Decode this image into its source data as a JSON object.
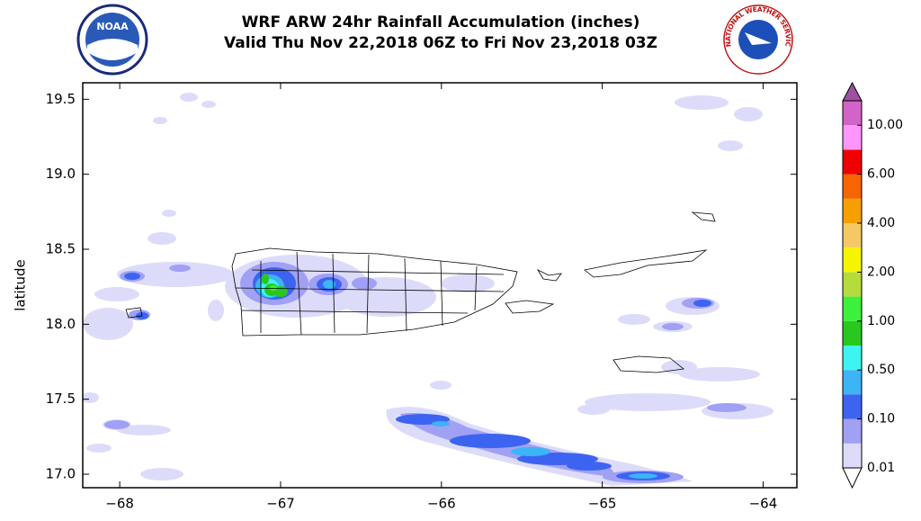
{
  "chart_data": {
    "type": "map",
    "title": "WRF ARW 24hr Rainfall Accumulation (inches)",
    "subtitle": "Valid Thu Nov 22,2018 06Z to Fri Nov 23,2018 03Z",
    "logos": [
      "NOAA",
      "NATIONAL WEATHER SERVICE"
    ],
    "ylabel": "latitude",
    "xlim": [
      -68.23,
      -63.79
    ],
    "ylim": [
      16.91,
      19.61
    ],
    "xticks": [
      {
        "value": -68,
        "label": "−68"
      },
      {
        "value": -67,
        "label": "−67"
      },
      {
        "value": -66,
        "label": "−66"
      },
      {
        "value": -65,
        "label": "−65"
      },
      {
        "value": -64,
        "label": "−64"
      }
    ],
    "yticks": [
      {
        "value": 17,
        "label": "17.0"
      },
      17.5,
      {
        "value": 18,
        "label": "18.0"
      },
      18.5,
      {
        "value": 19,
        "label": "19.0"
      },
      19.5
    ],
    "colorbar": {
      "colors": [
        "#dcdcfa",
        "#a0a0f5",
        "#3c64f0",
        "#3cb4f5",
        "#3cf5f0",
        "#28c81e",
        "#3cf03c",
        "#b4dc3c",
        "#f5f500",
        "#f5c864",
        "#f5a000",
        "#f56400",
        "#f00000",
        "#ff96ff",
        "#d264c8"
      ],
      "over_color": "#a050a0",
      "under_color": "#ffffff",
      "ticks": [
        {
          "value": 0.01,
          "label": "0.01"
        },
        {
          "value": 0.1,
          "label": "0.10"
        },
        {
          "value": 0.5,
          "label": "0.50"
        },
        {
          "value": 1,
          "label": "1.00"
        },
        {
          "value": 2,
          "label": "2.00"
        },
        {
          "value": 4,
          "label": "4.00"
        },
        {
          "value": 6,
          "label": "6.00"
        },
        {
          "value": 10,
          "label": "10.00"
        }
      ]
    }
  }
}
